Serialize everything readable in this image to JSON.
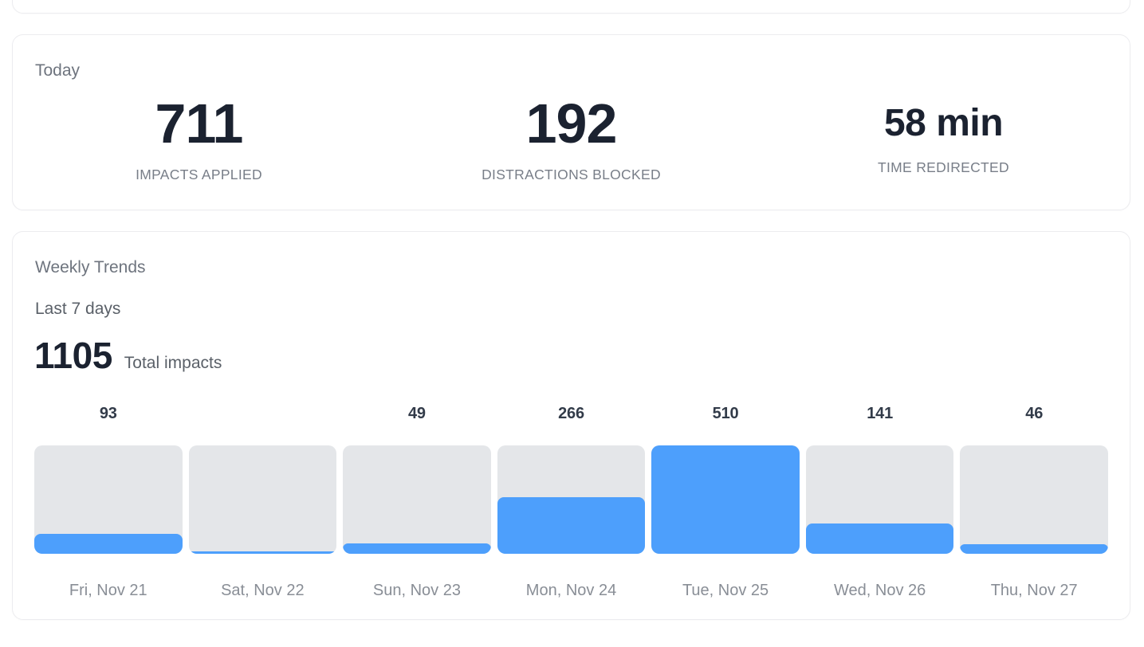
{
  "today_card": {
    "title": "Today",
    "stats": [
      {
        "value": "711",
        "label": "IMPACTS APPLIED"
      },
      {
        "value": "192",
        "label": "DISTRACTIONS BLOCKED"
      },
      {
        "value": "58 min",
        "label": "TIME REDIRECTED"
      }
    ]
  },
  "weekly_card": {
    "title": "Weekly Trends",
    "subtitle": "Last 7 days",
    "total_value": "1105",
    "total_label": "Total impacts"
  },
  "chart_data": {
    "type": "bar",
    "title": "Weekly Trends",
    "categories": [
      "Fri, Nov 21",
      "Sat, Nov 22",
      "Sun, Nov 23",
      "Mon, Nov 24",
      "Tue, Nov 25",
      "Wed, Nov 26",
      "Thu, Nov 27"
    ],
    "values": [
      93,
      0,
      49,
      266,
      510,
      141,
      46
    ],
    "value_labels": [
      "93",
      "",
      "49",
      "266",
      "510",
      "141",
      "46"
    ],
    "ylim": [
      0,
      510
    ],
    "grid": false,
    "legend": "none",
    "bar_color": "#4D9FFC",
    "track_color": "#E4E6E9"
  },
  "colors": {
    "accent_blue": "#4D9FFC",
    "bar_track_gray": "#E4E6E9",
    "number_dark": "#1B2230",
    "title_gray": "#6E747E",
    "stat_label_gray": "#787E88",
    "date_gray": "#898E96",
    "card_border": "#ECECEF",
    "card_background": "#FFFFFF"
  }
}
